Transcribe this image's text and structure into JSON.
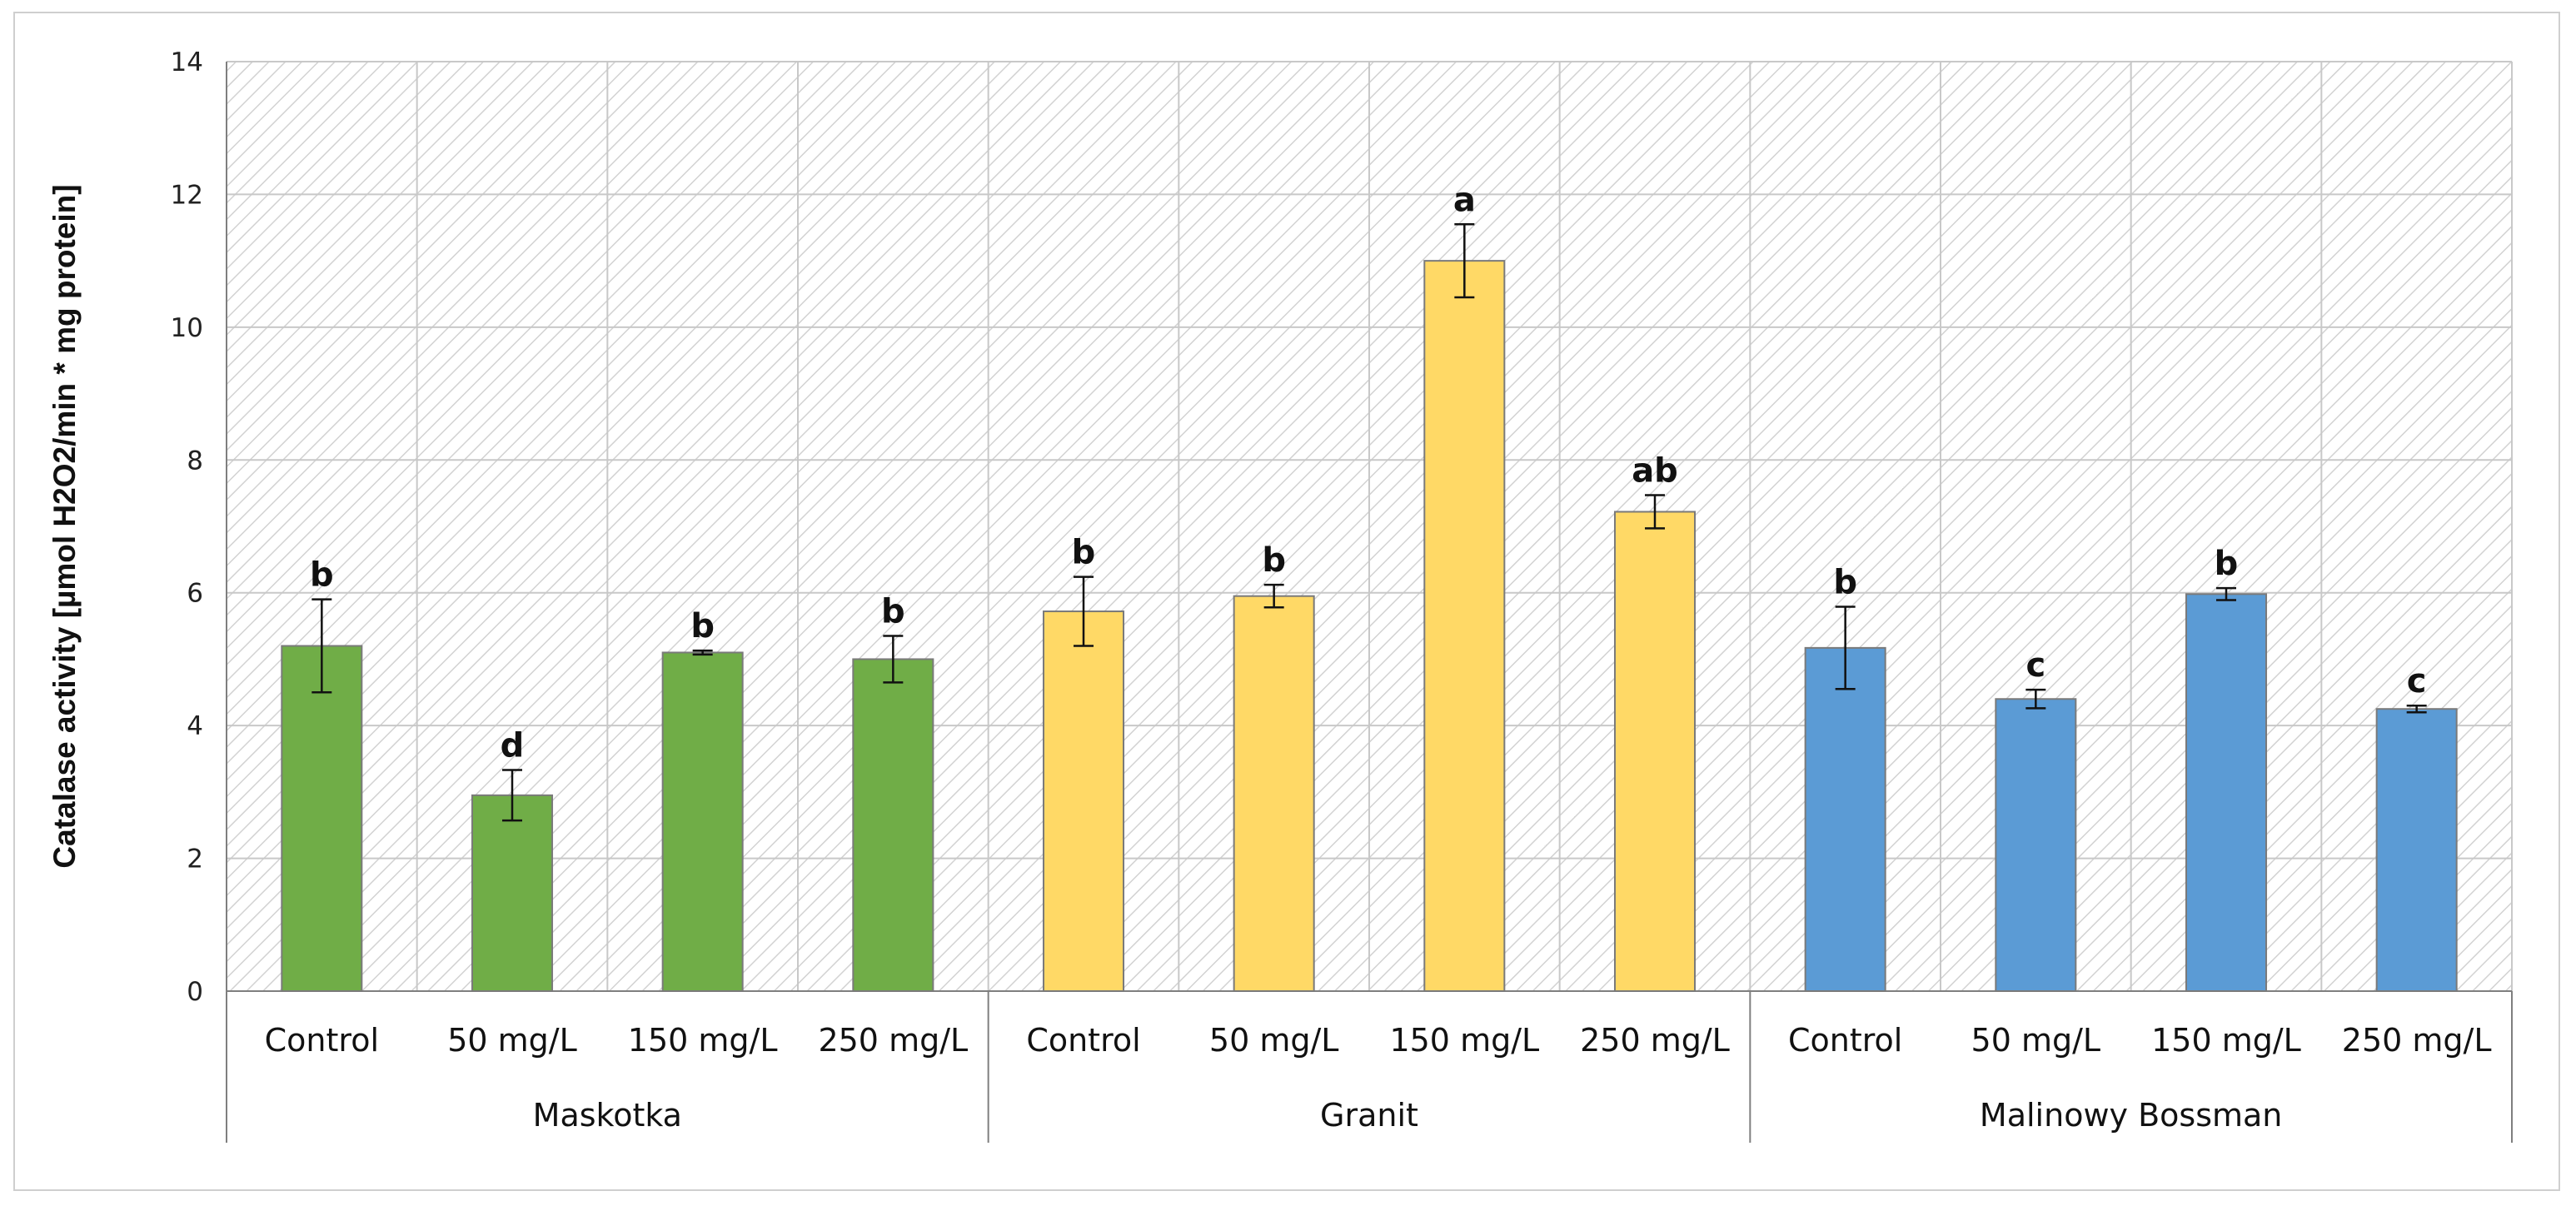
{
  "chart_data": {
    "type": "bar",
    "title": "",
    "ylabel": "Catalase activity [µmol H2O2/min * mg protein]",
    "ylim": [
      0,
      14
    ],
    "yticks": [
      "0",
      "2",
      "4",
      "6",
      "8",
      "10",
      "12",
      "14"
    ],
    "grid": true,
    "groups": [
      {
        "name": "Maskotka",
        "color": "#70ad47",
        "bars": [
          {
            "category": "Control",
            "value": 5.2,
            "error": 0.7,
            "label": "b"
          },
          {
            "category": "50 mg/L",
            "value": 2.95,
            "error": 0.38,
            "label": "d"
          },
          {
            "category": "150 mg/L",
            "value": 5.1,
            "error": 0.03,
            "label": "b"
          },
          {
            "category": "250 mg/L",
            "value": 5.0,
            "error": 0.35,
            "label": "b"
          }
        ]
      },
      {
        "name": "Granit",
        "color": "#ffd966",
        "bars": [
          {
            "category": "Control",
            "value": 5.72,
            "error": 0.52,
            "label": "b"
          },
          {
            "category": "50 mg/L",
            "value": 5.95,
            "error": 0.17,
            "label": "b"
          },
          {
            "category": "150 mg/L",
            "value": 11.0,
            "error": 0.55,
            "label": "a"
          },
          {
            "category": "250 mg/L",
            "value": 7.22,
            "error": 0.25,
            "label": "ab"
          }
        ]
      },
      {
        "name": "Malinowy Bossman",
        "color": "#5b9bd5",
        "bars": [
          {
            "category": "Control",
            "value": 5.17,
            "error": 0.62,
            "label": "b"
          },
          {
            "category": "50 mg/L",
            "value": 4.4,
            "error": 0.14,
            "label": "c"
          },
          {
            "category": "150 mg/L",
            "value": 5.98,
            "error": 0.09,
            "label": "b"
          },
          {
            "category": "250 mg/L",
            "value": 4.25,
            "error": 0.05,
            "label": "c"
          }
        ]
      }
    ]
  }
}
